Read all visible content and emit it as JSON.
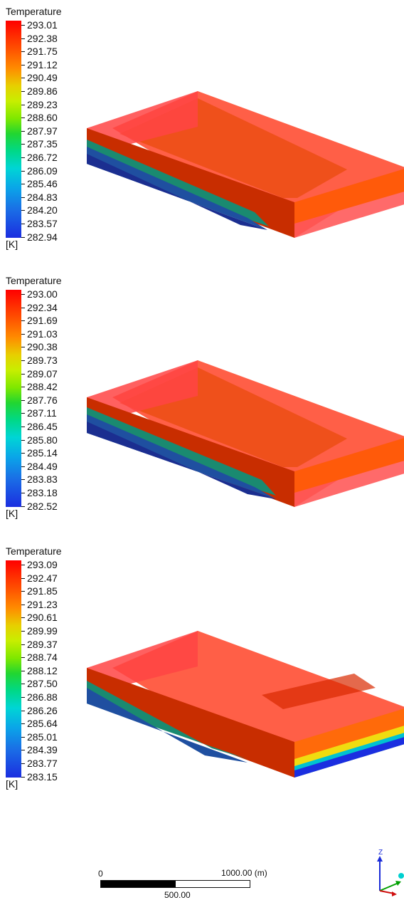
{
  "panels": [
    {
      "title": "Temperature",
      "unit": "[K]",
      "ticks": [
        "293.01",
        "292.38",
        "291.75",
        "291.12",
        "290.49",
        "289.86",
        "289.23",
        "288.60",
        "287.97",
        "287.35",
        "286.72",
        "286.09",
        "285.46",
        "284.83",
        "284.20",
        "283.57",
        "282.94"
      ]
    },
    {
      "title": "Temperature",
      "unit": "[K]",
      "ticks": [
        "293.00",
        "292.34",
        "291.69",
        "291.03",
        "290.38",
        "289.73",
        "289.07",
        "288.42",
        "287.76",
        "287.11",
        "286.45",
        "285.80",
        "285.14",
        "284.49",
        "283.83",
        "283.18",
        "282.52"
      ]
    },
    {
      "title": "Temperature",
      "unit": "[K]",
      "ticks": [
        "293.09",
        "292.47",
        "291.85",
        "291.23",
        "290.61",
        "289.99",
        "289.37",
        "288.74",
        "288.12",
        "287.50",
        "286.88",
        "286.26",
        "285.64",
        "285.01",
        "284.39",
        "283.77",
        "283.15"
      ]
    }
  ],
  "scale": {
    "zero": "0",
    "max": "1000.00  (m)",
    "mid": "500.00"
  },
  "triad": {
    "z_label": "Z"
  },
  "colors": {
    "hot": "#ff2a00",
    "cold": "#1b2ee0"
  }
}
